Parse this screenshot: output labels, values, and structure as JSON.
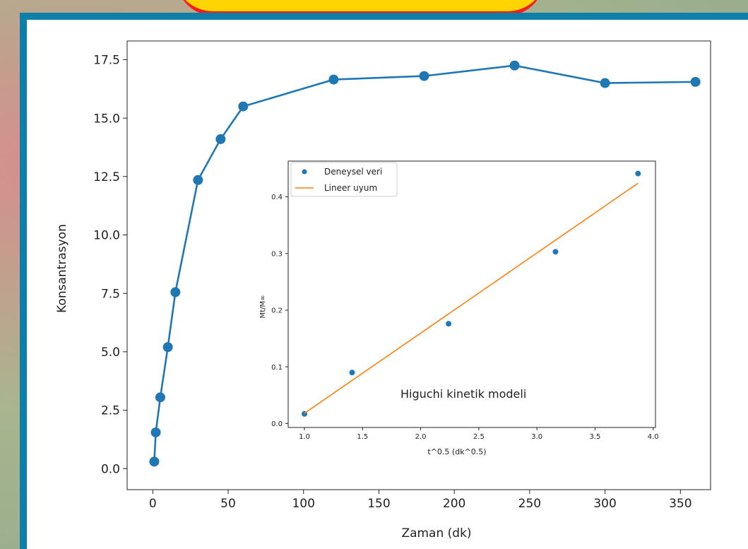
{
  "chart_data": [
    {
      "type": "line",
      "xlabel": "Zaman (dk)",
      "ylabel": "Konsantrasyon",
      "xlim": [
        -17,
        370
      ],
      "ylim": [
        -0.9,
        18.3
      ],
      "x_ticks": [
        "0",
        "50",
        "100",
        "150",
        "200",
        "250",
        "300",
        "350"
      ],
      "y_ticks": [
        "0.0",
        "2.5",
        "5.0",
        "7.5",
        "10.0",
        "12.5",
        "15.0",
        "17.5"
      ],
      "series": [
        {
          "color": "#1f77b4",
          "x": [
            1,
            2,
            5,
            10,
            15,
            30,
            45,
            60,
            120,
            180,
            240,
            300,
            360
          ],
          "y": [
            0.3,
            1.55,
            3.05,
            5.2,
            7.55,
            12.35,
            14.1,
            15.5,
            16.65,
            16.8,
            17.25,
            16.5,
            16.55
          ]
        }
      ]
    },
    {
      "type": "scatter",
      "title": "",
      "annotation": "Higuchi kinetik modeli",
      "xlabel": "t^0.5 (dk^0.5)",
      "ylabel": "Mt/M∞",
      "xlim": [
        0.86,
        4.02
      ],
      "ylim": [
        -0.007,
        0.463
      ],
      "x_ticks": [
        "1.0",
        "1.5",
        "2.0",
        "2.5",
        "3.0",
        "3.5",
        "4.0"
      ],
      "y_ticks": [
        "0.0",
        "0.1",
        "0.2",
        "0.3",
        "0.4"
      ],
      "legend": "top-left",
      "series": [
        {
          "name": "Deneysel veri",
          "kind": "scatter",
          "color": "#1f77b4",
          "x": [
            1.0,
            1.41,
            2.24,
            3.16,
            3.87
          ],
          "y": [
            0.017,
            0.09,
            0.176,
            0.303,
            0.441
          ]
        },
        {
          "name": "Lineer uyum",
          "kind": "line",
          "color": "#ff7f0e",
          "x": [
            1.0,
            3.87
          ],
          "y": [
            0.018,
            0.424
          ]
        }
      ]
    }
  ]
}
